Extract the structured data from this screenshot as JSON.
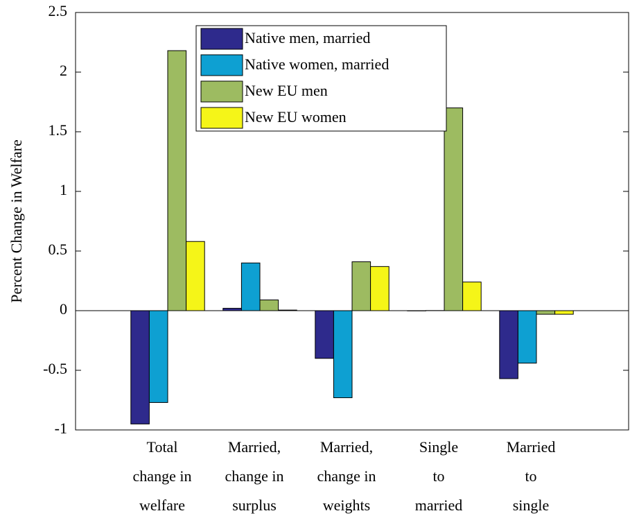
{
  "chart_data": {
    "type": "bar",
    "y_label": "Percent Change in Welfare",
    "categories": [
      [
        "Total",
        "change in",
        "welfare"
      ],
      [
        "Married,",
        "change in",
        "surplus"
      ],
      [
        "Married,",
        "change in",
        "weights"
      ],
      [
        "Single",
        "to",
        "married"
      ],
      [
        "Married",
        "to",
        "single"
      ]
    ],
    "series": [
      {
        "name": "Native men, married",
        "color": "#2e2a8c",
        "values": [
          -0.95,
          0.02,
          -0.4,
          -0.002,
          -0.57
        ]
      },
      {
        "name": "Native women, married",
        "color": "#0ea0d2",
        "values": [
          -0.77,
          0.4,
          -0.73,
          0.001,
          -0.44
        ]
      },
      {
        "name": "New EU men",
        "color": "#9dbb61",
        "values": [
          2.18,
          0.09,
          0.41,
          1.7,
          -0.03
        ]
      },
      {
        "name": "New EU women",
        "color": "#f5f518",
        "values": [
          0.58,
          0.005,
          0.37,
          0.24,
          -0.03
        ]
      }
    ],
    "ylim": [
      -1,
      2.5
    ],
    "yticks": [
      -1,
      -0.5,
      0,
      0.5,
      1,
      1.5,
      2,
      2.5
    ],
    "legend": "top"
  }
}
